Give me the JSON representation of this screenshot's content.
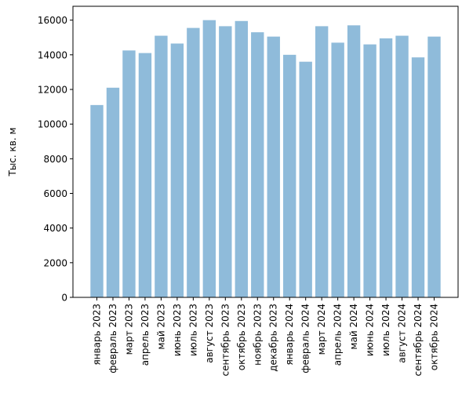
{
  "chart_data": {
    "type": "bar",
    "categories": [
      "январь 2023",
      "февраль 2023",
      "март 2023",
      "апрель 2023",
      "май 2023",
      "июнь 2023",
      "июль 2023",
      "август 2023",
      "сентябрь 2023",
      "октябрь 2023",
      "ноябрь 2023",
      "декабрь 2023",
      "январь 2024",
      "февраль 2024",
      "март 2024",
      "апрель 2024",
      "май 2024",
      "июнь 2024",
      "июль 2024",
      "август 2024",
      "сентябрь 2024",
      "октябрь 2024"
    ],
    "values": [
      11100,
      12100,
      14250,
      14100,
      15100,
      14650,
      15550,
      16000,
      15650,
      15950,
      15300,
      15050,
      14000,
      13600,
      15650,
      14700,
      15700,
      14600,
      14950,
      15100,
      13850,
      15050
    ],
    "title": "",
    "xlabel": "",
    "ylabel": "Тыс. кв. м",
    "ylim": [
      0,
      16800
    ],
    "yticks": [
      0,
      2000,
      4000,
      6000,
      8000,
      10000,
      12000,
      14000,
      16000
    ],
    "grid": false,
    "bar_color": "#8fbbda"
  }
}
